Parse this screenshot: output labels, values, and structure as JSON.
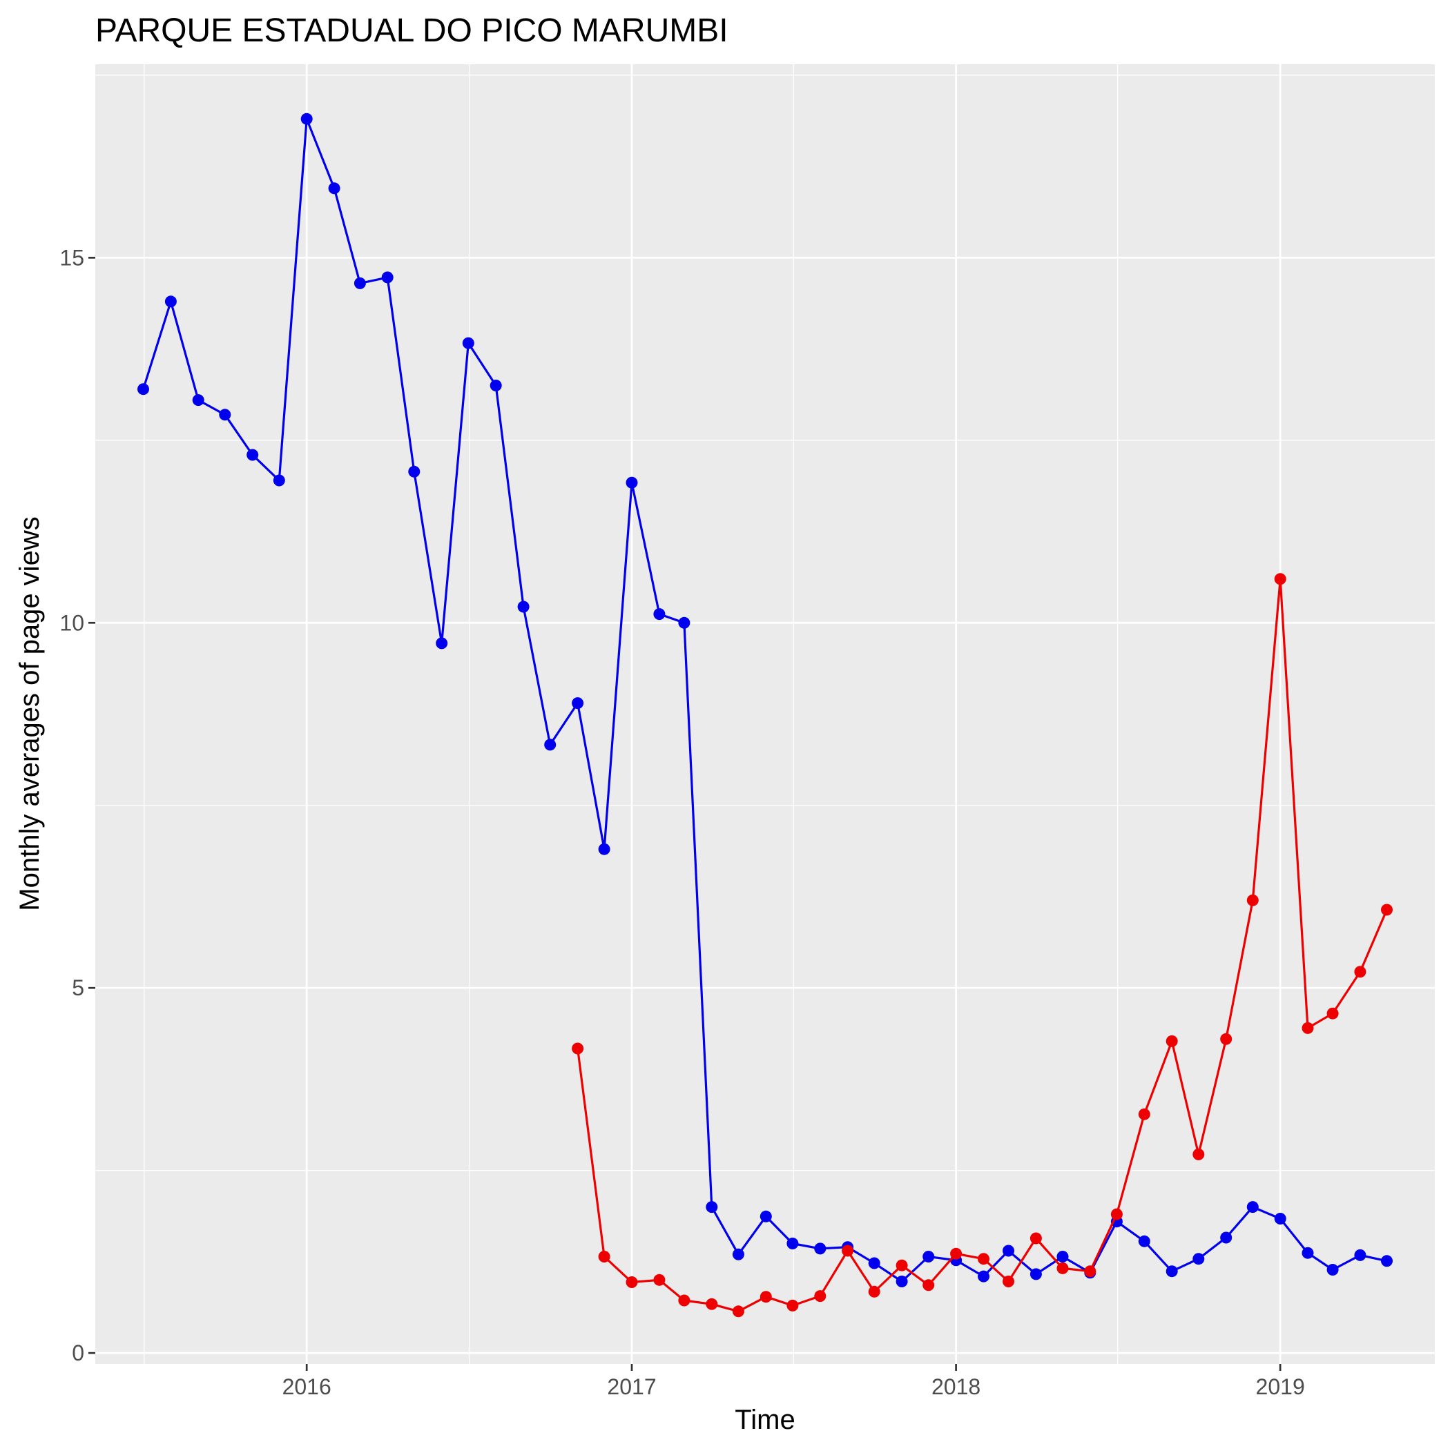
{
  "chart_data": {
    "type": "line",
    "title": "PARQUE ESTADUAL DO PICO MARUMBI",
    "xlabel": "Time",
    "ylabel": "Monthly averages of page views",
    "x_ticks": [
      "2016",
      "2017",
      "2018",
      "2019"
    ],
    "y_ticks": [
      "0",
      "5",
      "10",
      "15"
    ],
    "xlim": [
      "2015-05-08",
      "2019-06-24"
    ],
    "ylim": [
      -0.15,
      17.65
    ],
    "grid": true,
    "legend": "none",
    "series": [
      {
        "color": "#0000ee",
        "x": [
          "2015-07-01",
          "2015-08-01",
          "2015-09-01",
          "2015-10-01",
          "2015-11-01",
          "2015-12-01",
          "2016-01-01",
          "2016-02-01",
          "2016-03-01",
          "2016-04-01",
          "2016-05-01",
          "2016-06-01",
          "2016-07-01",
          "2016-08-01",
          "2016-09-01",
          "2016-10-01",
          "2016-11-01",
          "2016-12-01",
          "2017-01-01",
          "2017-02-01",
          "2017-03-01",
          "2017-04-01",
          "2017-05-01",
          "2017-06-01",
          "2017-07-01",
          "2017-08-01",
          "2017-09-01",
          "2017-10-01",
          "2017-11-01",
          "2017-12-01",
          "2018-01-01",
          "2018-02-01",
          "2018-03-01",
          "2018-04-01",
          "2018-05-01",
          "2018-06-01",
          "2018-07-01",
          "2018-08-01",
          "2018-09-01",
          "2018-10-01",
          "2018-11-01",
          "2018-12-01",
          "2019-01-01",
          "2019-02-01",
          "2019-03-01",
          "2019-04-01",
          "2019-05-01"
        ],
        "y": [
          13.2,
          14.4,
          13.05,
          12.85,
          12.3,
          11.95,
          16.9,
          15.95,
          14.65,
          14.73,
          12.07,
          9.72,
          13.83,
          13.25,
          10.22,
          8.33,
          8.9,
          6.9,
          11.92,
          10.12,
          10.0,
          2.0,
          1.35,
          1.87,
          1.5,
          1.43,
          1.45,
          1.23,
          0.98,
          1.32,
          1.27,
          1.05,
          1.4,
          1.08,
          1.32,
          1.1,
          1.8,
          1.53,
          1.12,
          1.29,
          1.58,
          2.0,
          1.84,
          1.37,
          1.14,
          1.34,
          1.26
        ]
      },
      {
        "color": "#ee0000",
        "x": [
          "2016-11-01",
          "2016-12-01",
          "2017-01-01",
          "2017-02-01",
          "2017-03-01",
          "2017-04-01",
          "2017-05-01",
          "2017-06-01",
          "2017-07-01",
          "2017-08-01",
          "2017-09-01",
          "2017-10-01",
          "2017-11-01",
          "2017-12-01",
          "2018-01-01",
          "2018-02-01",
          "2018-03-01",
          "2018-04-01",
          "2018-05-01",
          "2018-06-01",
          "2018-07-01",
          "2018-08-01",
          "2018-09-01",
          "2018-10-01",
          "2018-11-01",
          "2018-12-01",
          "2019-01-01",
          "2019-02-01",
          "2019-03-01",
          "2019-04-01",
          "2019-05-01"
        ],
        "y": [
          4.17,
          1.32,
          0.97,
          1.0,
          0.72,
          0.67,
          0.57,
          0.77,
          0.65,
          0.78,
          1.4,
          0.84,
          1.2,
          0.93,
          1.36,
          1.29,
          0.98,
          1.57,
          1.16,
          1.12,
          1.9,
          3.27,
          4.27,
          2.72,
          4.3,
          6.2,
          10.6,
          4.45,
          4.65,
          5.22,
          6.07
        ]
      }
    ]
  }
}
